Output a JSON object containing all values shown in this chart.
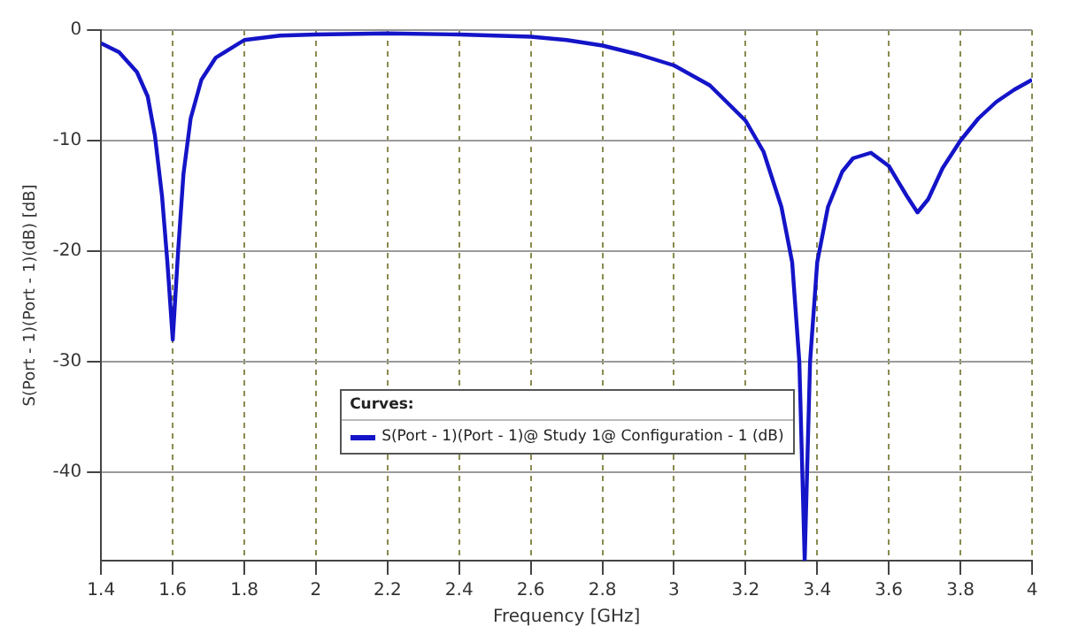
{
  "chart_data": {
    "type": "line",
    "xlabel": "Frequency [GHz]",
    "ylabel": "S(Port - 1)(Port - 1)(dB) [dB]",
    "legend_title": "Curves:",
    "legend": "bottom",
    "grid": true,
    "marker": "none",
    "line_style": "solid",
    "xlim": [
      1.4,
      4
    ],
    "ylim": [
      -48,
      0
    ],
    "xticks": [
      1.4,
      1.6,
      1.8,
      2,
      2.2,
      2.4,
      2.6,
      2.8,
      3,
      3.2,
      3.4,
      3.6,
      3.8,
      4
    ],
    "yticks": [
      0,
      -10,
      -20,
      -30,
      -40
    ],
    "series": [
      {
        "name": "S(Port - 1)(Port - 1)@ Study 1@ Configuration - 1 (dB)",
        "color": "#1414c8",
        "x": [
          1.4,
          1.45,
          1.5,
          1.53,
          1.55,
          1.57,
          1.585,
          1.6,
          1.615,
          1.63,
          1.65,
          1.68,
          1.72,
          1.8,
          1.9,
          2.0,
          2.2,
          2.4,
          2.6,
          2.7,
          2.8,
          2.9,
          3.0,
          3.1,
          3.2,
          3.25,
          3.3,
          3.33,
          3.35,
          3.365,
          3.38,
          3.4,
          3.43,
          3.47,
          3.5,
          3.55,
          3.6,
          3.65,
          3.68,
          3.71,
          3.75,
          3.8,
          3.85,
          3.9,
          3.95,
          4.0
        ],
        "values": [
          -1.2,
          -2,
          -3.8,
          -6,
          -9.5,
          -15,
          -21,
          -28,
          -20,
          -13,
          -8,
          -4.5,
          -2.5,
          -0.9,
          -0.5,
          -0.4,
          -0.3,
          -0.4,
          -0.6,
          -0.9,
          -1.4,
          -2.2,
          -3.2,
          -5,
          -8.2,
          -11,
          -16,
          -21,
          -30,
          -48,
          -30,
          -21,
          -16,
          -12.8,
          -11.6,
          -11.1,
          -12.3,
          -15,
          -16.5,
          -15.3,
          -12.5,
          -10,
          -8,
          -6.5,
          -5.4,
          -4.5
        ]
      }
    ]
  }
}
